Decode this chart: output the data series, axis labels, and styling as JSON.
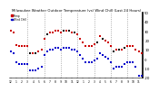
{
  "title": "Milwaukee Weather Outdoor Temperature (vs) Wind Chill (Last 24 Hours)",
  "temp_color": "#cc0000",
  "wind_color": "#0000cc",
  "black_color": "#000000",
  "bg_color": "#ffffff",
  "grid_color": "#888888",
  "ylim": [
    -20,
    50
  ],
  "yticks": [
    -20,
    -10,
    0,
    10,
    20,
    30,
    40,
    50
  ],
  "n_points": 48,
  "temp_x": [
    0,
    1,
    2,
    3,
    4,
    5,
    6,
    7,
    8,
    9,
    10,
    11,
    12,
    13,
    14,
    15,
    16,
    17,
    18,
    19,
    20,
    21,
    22,
    23,
    24,
    25,
    26,
    27,
    28,
    29,
    30,
    31,
    32,
    33,
    34,
    35,
    36,
    37,
    38,
    39,
    40,
    41,
    42,
    43,
    44,
    45,
    46,
    47
  ],
  "temp_y": [
    30,
    28,
    15,
    14,
    14,
    14,
    14,
    6,
    6,
    6,
    8,
    10,
    22,
    26,
    28,
    28,
    30,
    30,
    28,
    30,
    30,
    30,
    28,
    28,
    26,
    22,
    18,
    14,
    14,
    14,
    16,
    18,
    24,
    22,
    20,
    18,
    14,
    8,
    10,
    10,
    10,
    12,
    14,
    14,
    14,
    10,
    8,
    6
  ],
  "wind_x": [
    0,
    1,
    2,
    3,
    4,
    5,
    6,
    7,
    8,
    9,
    10,
    11,
    12,
    13,
    14,
    15,
    16,
    17,
    18,
    19,
    20,
    21,
    22,
    23,
    24,
    25,
    26,
    27,
    28,
    29,
    30,
    31,
    32,
    33,
    34,
    35,
    36,
    37,
    38,
    39,
    40,
    41,
    42,
    43,
    44,
    45,
    46,
    47
  ],
  "wind_y": [
    8,
    6,
    -4,
    -6,
    -6,
    -6,
    -6,
    -12,
    -12,
    -12,
    -10,
    -8,
    4,
    8,
    10,
    10,
    12,
    12,
    10,
    12,
    12,
    12,
    10,
    10,
    8,
    4,
    0,
    -4,
    -4,
    -4,
    -2,
    0,
    6,
    4,
    2,
    0,
    -4,
    -10,
    -8,
    -8,
    -8,
    -6,
    -4,
    -4,
    -4,
    -8,
    -18,
    -18
  ],
  "vgrid_positions": [
    6,
    12,
    18,
    24,
    30,
    36,
    42
  ],
  "xtick_labels": [
    "12",
    "1",
    "2",
    "3",
    "4",
    "5",
    "6",
    "7",
    "8",
    "9",
    "10",
    "11",
    "12",
    "1",
    "2",
    "3",
    "4",
    "5",
    "6",
    "7",
    "8",
    "9",
    "10",
    "11"
  ],
  "marker_size": 2.5,
  "title_fontsize": 2.8,
  "tick_fontsize": 2.8,
  "xtick_fontsize": 2.2
}
